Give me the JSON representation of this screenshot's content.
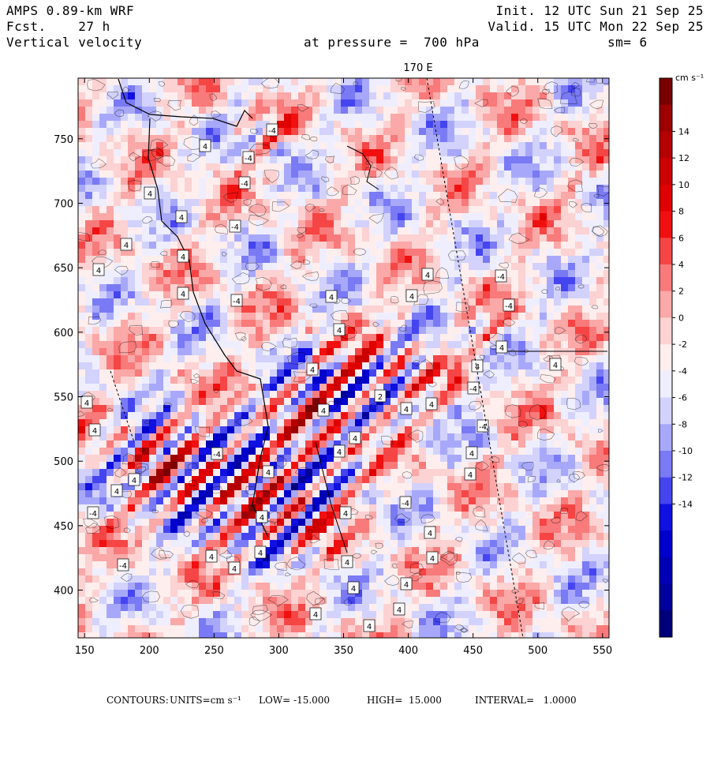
{
  "header": {
    "model": "AMPS 0.89-km WRF",
    "forecast_label": "Fcst.",
    "forecast_value": "27 h",
    "field": "Vertical velocity",
    "init": "Init. 12 UTC Sun 21 Sep 25",
    "valid": "Valid. 15 UTC Mon 22 Sep 25",
    "pressure_label": "at pressure =",
    "pressure_value": "700 hPa",
    "smoothing": "sm= 6"
  },
  "map": {
    "meridian_label": "170 E",
    "x_ticks": [
      "150",
      "200",
      "250",
      "300",
      "350",
      "400",
      "450",
      "500",
      "550"
    ],
    "y_ticks": [
      "750",
      "700",
      "650",
      "600",
      "550",
      "500",
      "450",
      "400"
    ],
    "x_tick_values": [
      150,
      200,
      250,
      300,
      350,
      400,
      450,
      500,
      550
    ],
    "y_tick_values": [
      750,
      700,
      650,
      600,
      550,
      500,
      450,
      400
    ],
    "x_range": [
      145,
      555
    ],
    "y_range": [
      363,
      797
    ],
    "contour_labels": [
      "4",
      "-4",
      "2"
    ]
  },
  "colorbar": {
    "units": "cm s⁻¹",
    "tick_labels": [
      "14",
      "12",
      "10",
      "8",
      "6",
      "4",
      "2",
      "0",
      "-2",
      "-4",
      "-6",
      "-8",
      "-10",
      "-12",
      "-14"
    ],
    "colors": [
      "#7a0000",
      "#9c0000",
      "#b40000",
      "#cc0000",
      "#e00000",
      "#f01010",
      "#f54545",
      "#f87a7a",
      "#faa8a8",
      "#fcd2d2",
      "#ffeeee",
      "#eeeeff",
      "#d2d2fc",
      "#a8a8fa",
      "#7a7af5",
      "#4545f0",
      "#1010e0",
      "#0000cc",
      "#0000b4",
      "#00009c",
      "#00007a"
    ]
  },
  "footer": {
    "contours": "CONTOURS:",
    "units": "UNITS=cm s⁻¹",
    "low": "LOW= -15.000",
    "high": "HIGH=  15.000",
    "interval": "INTERVAL=   1.0000"
  }
}
